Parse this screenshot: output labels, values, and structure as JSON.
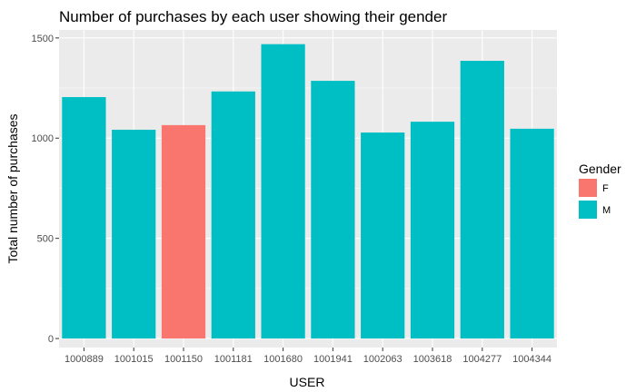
{
  "chart_data": {
    "type": "bar",
    "title": "Number of purchases by each user showing their gender",
    "xlabel": "USER",
    "ylabel": "Total number of purchases",
    "categories": [
      "1000889",
      "1001015",
      "1001150",
      "1001181",
      "1001680",
      "1001941",
      "1002063",
      "1003618",
      "1004277",
      "1004344"
    ],
    "values": [
      1205,
      1042,
      1065,
      1233,
      1469,
      1286,
      1028,
      1082,
      1386,
      1047
    ],
    "gender": [
      "M",
      "M",
      "F",
      "M",
      "M",
      "M",
      "M",
      "M",
      "M",
      "M"
    ],
    "ylim": [
      -45,
      1540
    ],
    "yticks": [
      0,
      500,
      1000,
      1500
    ],
    "ytick_labels": [
      "0",
      "500",
      "1000",
      "1500"
    ],
    "grid": true,
    "legend": {
      "title": "Gender",
      "position": "right",
      "entries": [
        {
          "key": "F",
          "label": "F",
          "color": "#F8766D"
        },
        {
          "key": "M",
          "label": "M",
          "color": "#00BFC4"
        }
      ]
    },
    "colors": {
      "F": "#F8766D",
      "M": "#00BFC4",
      "panel": "#EBEBEB",
      "grid": "#FFFFFF"
    }
  }
}
